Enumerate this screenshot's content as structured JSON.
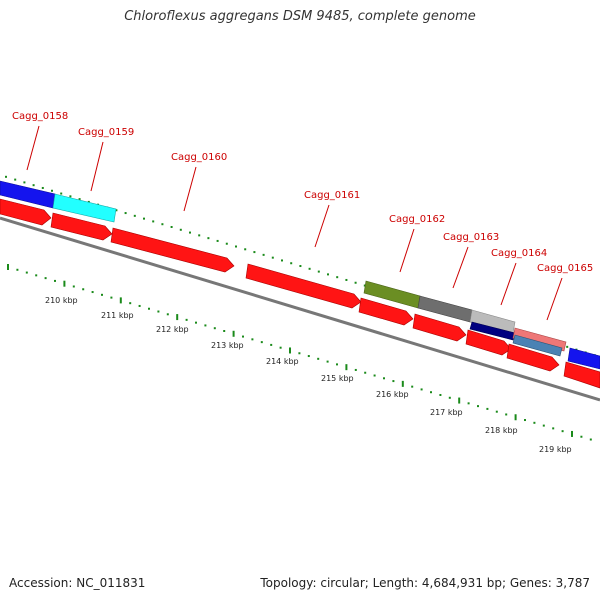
{
  "title": "Chloroflexus aggregans DSM 9485, complete genome",
  "footer": {
    "accession": "Accession: NC_011831",
    "stats": "Topology: circular; Length: 4,684,931 bp; Genes: 3,787"
  },
  "colors": {
    "forward_gene": "#1a1aff",
    "reverse_gene": "#ff1a1a",
    "label": "#cc0000",
    "dots": "#1a8a1a",
    "backbone": "#808080"
  },
  "ticks": [
    {
      "label": "210 kbp"
    },
    {
      "label": "211 kbp"
    },
    {
      "label": "212 kbp"
    },
    {
      "label": "213 kbp"
    },
    {
      "label": "214 kbp"
    },
    {
      "label": "215 kbp"
    },
    {
      "label": "216 kbp"
    },
    {
      "label": "217 kbp"
    },
    {
      "label": "218 kbp"
    },
    {
      "label": "219 kbp"
    }
  ],
  "gene_labels": [
    {
      "name": "Cagg_0158"
    },
    {
      "name": "Cagg_0159"
    },
    {
      "name": "Cagg_0160"
    },
    {
      "name": "Cagg_0161"
    },
    {
      "name": "Cagg_0162"
    },
    {
      "name": "Cagg_0163"
    },
    {
      "name": "Cagg_0164"
    },
    {
      "name": "Cagg_0165"
    }
  ]
}
